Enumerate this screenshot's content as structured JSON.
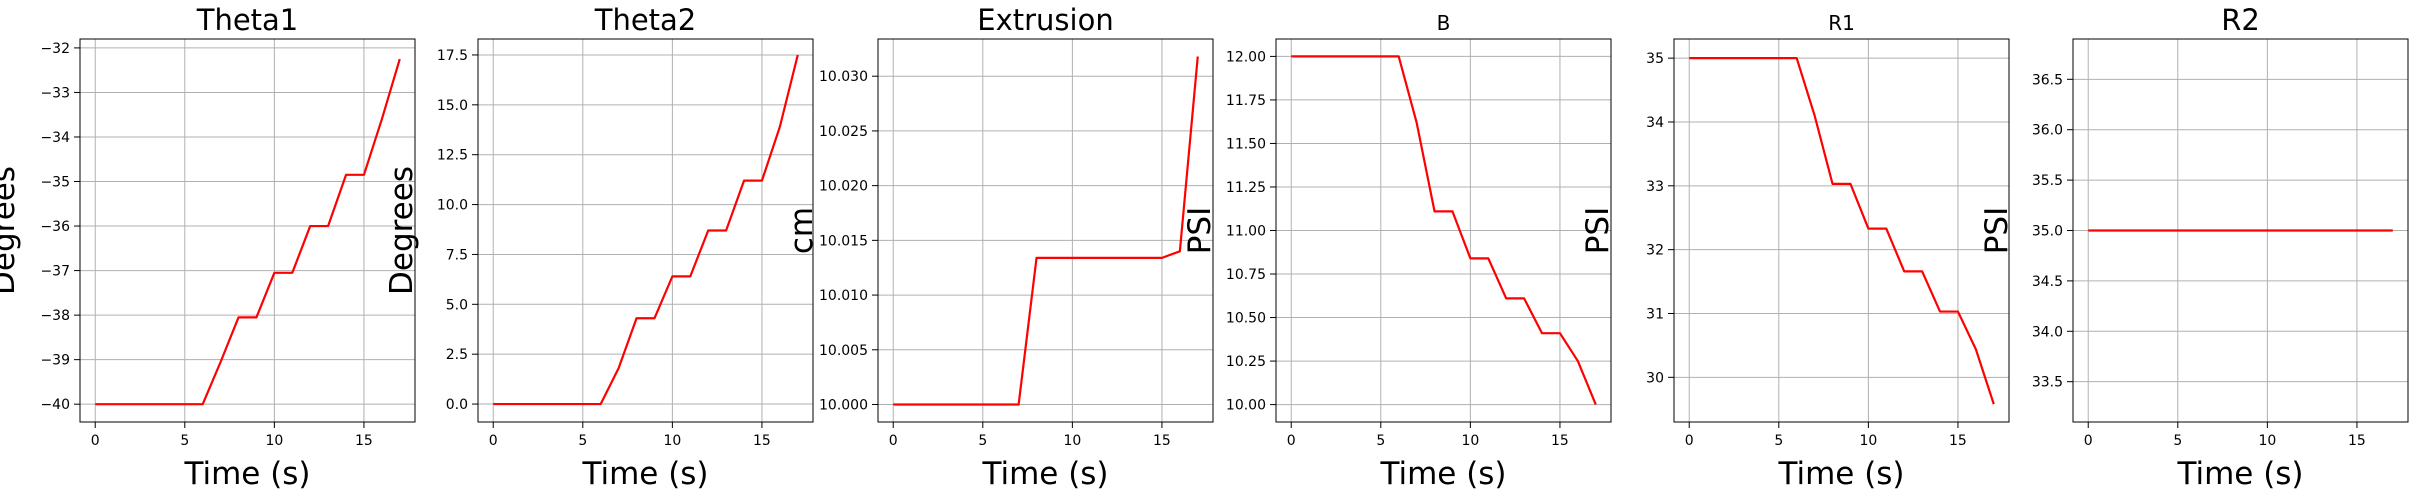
{
  "chart_data": [
    {
      "type": "line",
      "title": "Theta1",
      "title_size": "large",
      "xlabel": "Time (s)",
      "ylabel": "Degrees",
      "xlim": [
        -0.85,
        17.85
      ],
      "ylim": [
        -40.4,
        -31.8
      ],
      "xticks": [
        0,
        5,
        10,
        15
      ],
      "xtick_labels": [
        "0",
        "5",
        "10",
        "15"
      ],
      "yticks": [
        -40,
        -39,
        -38,
        -37,
        -36,
        -35,
        -34,
        -33,
        -32
      ],
      "ytick_labels": [
        "−40",
        "−39",
        "−38",
        "−37",
        "−36",
        "−35",
        "−34",
        "−33",
        "−32"
      ],
      "grid": true,
      "series": [
        {
          "color": "#ff0000",
          "x": [
            0,
            1,
            2,
            3,
            4,
            5,
            6,
            7,
            8,
            9,
            10,
            11,
            12,
            13,
            14,
            15,
            16,
            17
          ],
          "y": [
            -40,
            -40,
            -40,
            -40,
            -40,
            -40,
            -40,
            -39.05,
            -38.05,
            -38.05,
            -37.05,
            -37.05,
            -36,
            -36,
            -34.85,
            -34.85,
            -33.6,
            -32.25
          ]
        }
      ]
    },
    {
      "type": "line",
      "title": "Theta2",
      "title_size": "large",
      "xlabel": "Time (s)",
      "ylabel": "Degrees",
      "xlim": [
        -0.85,
        17.85
      ],
      "ylim": [
        -0.9,
        18.3
      ],
      "xticks": [
        0,
        5,
        10,
        15
      ],
      "xtick_labels": [
        "0",
        "5",
        "10",
        "15"
      ],
      "yticks": [
        0,
        2.5,
        5,
        7.5,
        10,
        12.5,
        15,
        17.5
      ],
      "ytick_labels": [
        "0.0",
        "2.5",
        "5.0",
        "7.5",
        "10.0",
        "12.5",
        "15.0",
        "17.5"
      ],
      "grid": true,
      "series": [
        {
          "color": "#ff0000",
          "x": [
            0,
            1,
            2,
            3,
            4,
            5,
            6,
            7,
            8,
            9,
            10,
            11,
            12,
            13,
            14,
            15,
            16,
            17
          ],
          "y": [
            0,
            0,
            0,
            0,
            0,
            0,
            0,
            1.8,
            4.3,
            4.3,
            6.4,
            6.4,
            8.7,
            8.7,
            11.2,
            11.2,
            13.9,
            17.5
          ]
        }
      ]
    },
    {
      "type": "line",
      "title": "Extrusion",
      "title_size": "large",
      "xlabel": "Time (s)",
      "ylabel": "cm",
      "xlim": [
        -0.85,
        17.85
      ],
      "ylim": [
        9.9984,
        10.0334
      ],
      "xticks": [
        0,
        5,
        10,
        15
      ],
      "xtick_labels": [
        "0",
        "5",
        "10",
        "15"
      ],
      "yticks": [
        10.0,
        10.005,
        10.01,
        10.015,
        10.02,
        10.025,
        10.03
      ],
      "ytick_labels": [
        "10.000",
        "10.005",
        "10.010",
        "10.015",
        "10.020",
        "10.025",
        "10.030"
      ],
      "grid": true,
      "series": [
        {
          "color": "#ff0000",
          "x": [
            0,
            1,
            2,
            3,
            4,
            5,
            6,
            7,
            8,
            9,
            10,
            11,
            12,
            13,
            14,
            15,
            16,
            17
          ],
          "y": [
            10.0,
            10.0,
            10.0,
            10.0,
            10.0,
            10.0,
            10.0,
            10.0,
            10.0134,
            10.0134,
            10.0134,
            10.0134,
            10.0134,
            10.0134,
            10.0134,
            10.0134,
            10.014,
            10.0318
          ]
        }
      ]
    },
    {
      "type": "line",
      "title": "B",
      "title_size": "small",
      "xlabel": "Time (s)",
      "ylabel": "PSI",
      "xlim": [
        -0.85,
        17.85
      ],
      "ylim": [
        9.9,
        12.1
      ],
      "xticks": [
        0,
        5,
        10,
        15
      ],
      "xtick_labels": [
        "0",
        "5",
        "10",
        "15"
      ],
      "yticks": [
        10.0,
        10.25,
        10.5,
        10.75,
        11.0,
        11.25,
        11.5,
        11.75,
        12.0
      ],
      "ytick_labels": [
        "10.00",
        "10.25",
        "10.50",
        "10.75",
        "11.00",
        "11.25",
        "11.50",
        "11.75",
        "12.00"
      ],
      "grid": true,
      "series": [
        {
          "color": "#ff0000",
          "x": [
            0,
            1,
            2,
            3,
            4,
            5,
            6,
            7,
            8,
            9,
            10,
            11,
            12,
            13,
            14,
            15,
            16,
            17
          ],
          "y": [
            12,
            12,
            12,
            12,
            12,
            12,
            12,
            11.62,
            11.11,
            11.11,
            10.84,
            10.84,
            10.61,
            10.61,
            10.41,
            10.41,
            10.25,
            10.0
          ]
        }
      ]
    },
    {
      "type": "line",
      "title": "R1",
      "title_size": "small",
      "xlabel": "Time (s)",
      "ylabel": "PSI",
      "xlim": [
        -0.85,
        17.85
      ],
      "ylim": [
        29.3,
        35.3
      ],
      "xticks": [
        0,
        5,
        10,
        15
      ],
      "xtick_labels": [
        "0",
        "5",
        "10",
        "15"
      ],
      "yticks": [
        30,
        31,
        32,
        33,
        34,
        35
      ],
      "ytick_labels": [
        "30",
        "31",
        "32",
        "33",
        "34",
        "35"
      ],
      "grid": true,
      "series": [
        {
          "color": "#ff0000",
          "x": [
            0,
            1,
            2,
            3,
            4,
            5,
            6,
            7,
            8,
            9,
            10,
            11,
            12,
            13,
            14,
            15,
            16,
            17
          ],
          "y": [
            35,
            35,
            35,
            35,
            35,
            35,
            35,
            34.1,
            33.03,
            33.03,
            32.33,
            32.33,
            31.66,
            31.66,
            31.03,
            31.03,
            30.44,
            29.58
          ]
        }
      ]
    },
    {
      "type": "line",
      "title": "R2",
      "title_size": "large",
      "xlabel": "Time (s)",
      "ylabel": "PSI",
      "xlim": [
        -0.85,
        17.85
      ],
      "ylim": [
        33.1,
        36.9
      ],
      "xticks": [
        0,
        5,
        10,
        15
      ],
      "xtick_labels": [
        "0",
        "5",
        "10",
        "15"
      ],
      "yticks": [
        33.5,
        34.0,
        34.5,
        35.0,
        35.5,
        36.0,
        36.5
      ],
      "ytick_labels": [
        "33.5",
        "34.0",
        "34.5",
        "35.0",
        "35.5",
        "36.0",
        "36.5"
      ],
      "grid": true,
      "series": [
        {
          "color": "#ff0000",
          "x": [
            0,
            1,
            2,
            3,
            4,
            5,
            6,
            7,
            8,
            9,
            10,
            11,
            12,
            13,
            14,
            15,
            16,
            17
          ],
          "y": [
            35,
            35,
            35,
            35,
            35,
            35,
            35,
            35,
            35,
            35,
            35,
            35,
            35,
            35,
            35,
            35,
            35,
            35
          ]
        }
      ]
    }
  ]
}
